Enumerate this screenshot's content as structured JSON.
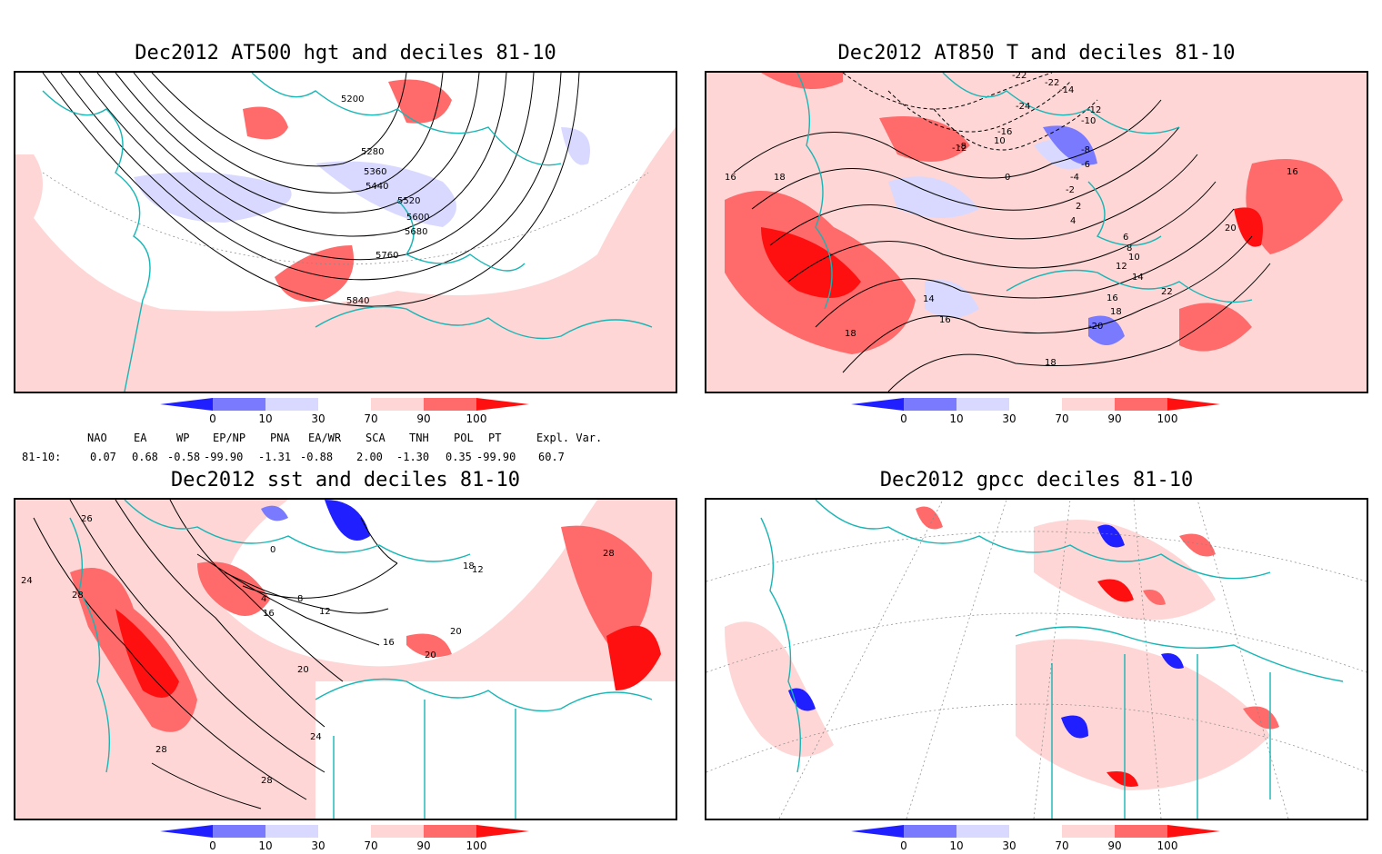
{
  "panels": [
    {
      "title": "Dec2012 AT500 hgt and deciles 81-10",
      "contour_labels": [
        "5200",
        "5280",
        "5360",
        "5440",
        "5520",
        "5600",
        "5680",
        "5760",
        "5840"
      ]
    },
    {
      "title": "Dec2012 AT850 T and deciles 81-10",
      "contour_labels": [
        "-22",
        "-14",
        "-12",
        "-10",
        "-8",
        "-6",
        "-4",
        "-2",
        "0",
        "2",
        "4",
        "6",
        "8",
        "10",
        "12",
        "14",
        "16",
        "18",
        "20",
        "22",
        "-12",
        "-8",
        "-16",
        "10",
        "-24",
        "-20",
        "16",
        "16",
        "18",
        "14",
        "16",
        "18",
        "18",
        "-22"
      ]
    },
    {
      "title": "Dec2012 sst and deciles 81-10",
      "contour_labels": [
        "26",
        "24",
        "28",
        "0",
        "4",
        "8",
        "12",
        "16",
        "20",
        "24",
        "28",
        "28",
        "28",
        "20",
        "16",
        "20",
        "12",
        "18"
      ]
    },
    {
      "title": "Dec2012 gpcc deciles 81-10",
      "contour_labels": []
    }
  ],
  "colorbar": {
    "ticks": [
      "0",
      "10",
      "30",
      "70",
      "90",
      "100"
    ],
    "colors": [
      "#1f1fff",
      "#7a7aff",
      "#d9d9ff",
      "#ffffff",
      "#ffd6d6",
      "#ff6a6a",
      "#ff1010"
    ]
  },
  "indices": {
    "headers": [
      "NAO",
      "EA",
      "WP",
      "EP/NP",
      "PNA",
      "EA/WR",
      "SCA",
      "TNH",
      "POL",
      "PT",
      "Expl. Var."
    ],
    "row_label": "81-10:",
    "values": [
      "0.07",
      "0.68",
      "-0.58",
      "-99.90",
      "-1.31",
      "-0.88",
      "2.00",
      "-1.30",
      "0.35",
      "-99.90",
      "60.7"
    ]
  }
}
